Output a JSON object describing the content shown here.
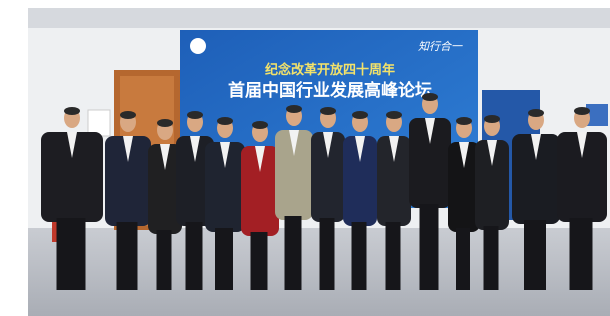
{
  "banner": {
    "line1": "纪念改革开放四十周年",
    "line2": "首届中国行业发展高峰论坛",
    "motto": "知行合一"
  }
}
